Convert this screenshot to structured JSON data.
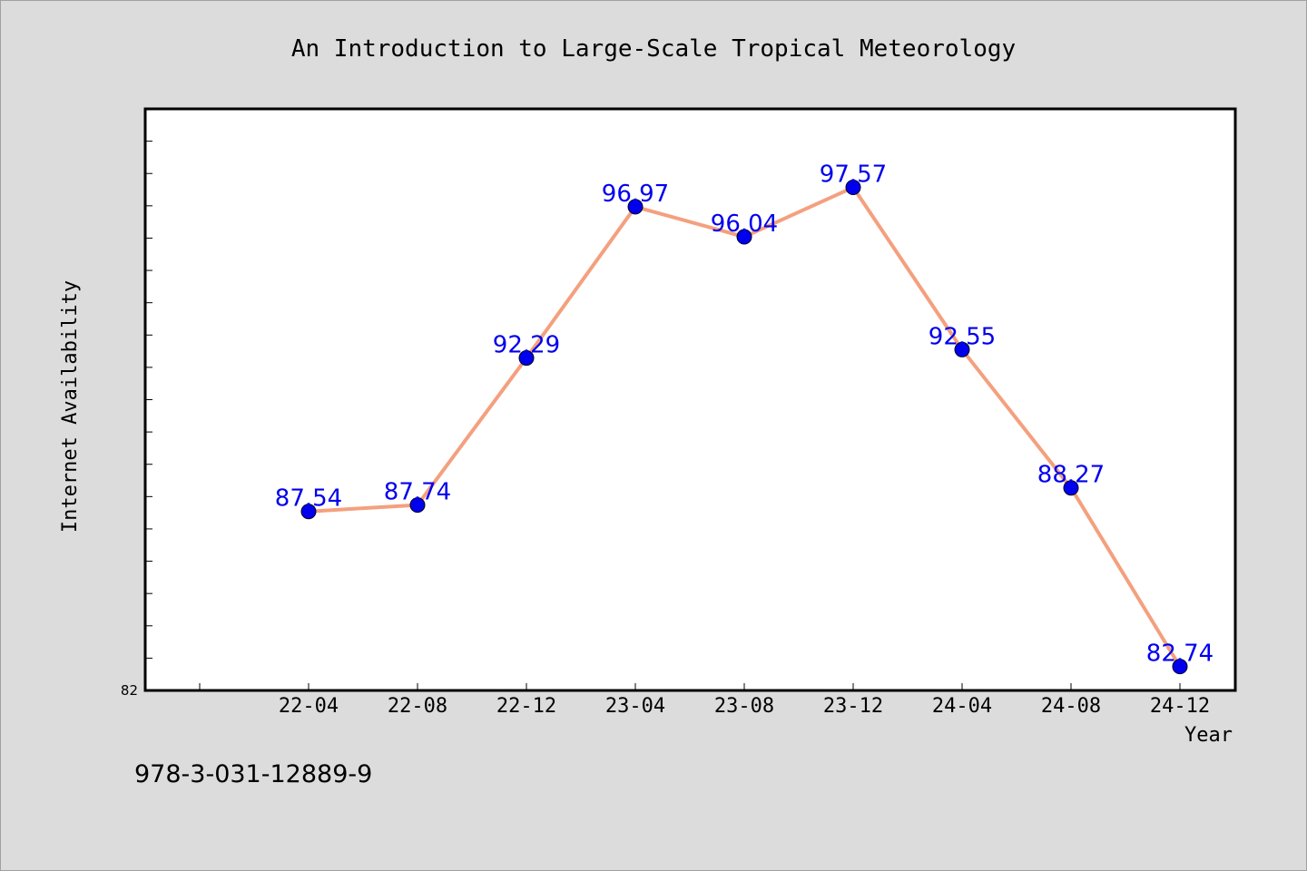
{
  "chart_data": {
    "type": "line",
    "title": "An Introduction to Large-Scale Tropical Meteorology",
    "xlabel": "Year",
    "ylabel": "Internet Availability",
    "categories": [
      "22-04",
      "22-08",
      "22-12",
      "23-04",
      "23-08",
      "23-12",
      "24-04",
      "24-08",
      "24-12"
    ],
    "series": [
      {
        "values": [
          87.54,
          87.74,
          92.29,
          96.97,
          96.04,
          97.57,
          92.55,
          88.27,
          82.74
        ]
      }
    ],
    "ylim": [
      82,
      100
    ],
    "y_tick_labels": [
      "82"
    ],
    "grid": false,
    "colors": {
      "line": "#f4a07e",
      "marker": "#0000ee",
      "data_label": "#0000ee"
    }
  },
  "footer": {
    "isbn": "978-3-031-12889-9"
  }
}
